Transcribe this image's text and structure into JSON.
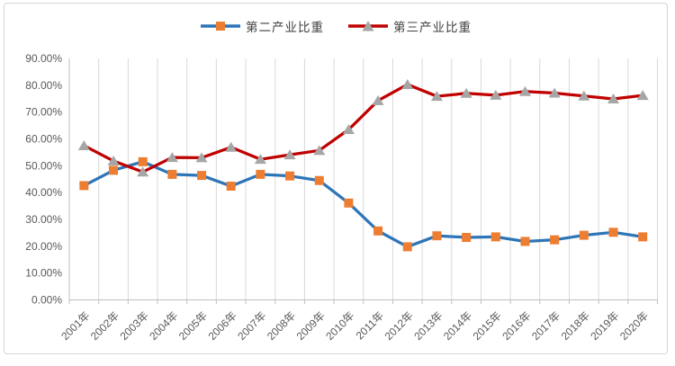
{
  "colors": {
    "secondary_line": "#2e75b6",
    "secondary_marker": "#ed7d31",
    "tertiary_line": "#c00000",
    "tertiary_marker": "#a6a6a6",
    "gridline": "#d9d9d9",
    "axis": "#bfbfbf",
    "tick_text": "#595959",
    "frame_border": "#d6d6d6"
  },
  "legend": [
    {
      "label": "第二产业比重",
      "line_color": "#2e75b6",
      "marker": "square",
      "marker_color": "#ed7d31"
    },
    {
      "label": "第三产业比重",
      "line_color": "#c00000",
      "marker": "triangle",
      "marker_color": "#a6a6a6"
    }
  ],
  "chart_data": {
    "type": "line",
    "title": "",
    "xlabel": "",
    "ylabel": "",
    "categories": [
      "2001年",
      "2002年",
      "2003年",
      "2004年",
      "2005年",
      "2006年",
      "2007年",
      "2008年",
      "2009年",
      "2010年",
      "2011年",
      "2012年",
      "2013年",
      "2014年",
      "2015年",
      "2016年",
      "2017年",
      "2018年",
      "2019年",
      "2020年"
    ],
    "series": [
      {
        "name": "第二产业比重",
        "color": "#2e75b6",
        "marker": "square",
        "marker_color": "#ed7d31",
        "values": [
          42.6,
          48.3,
          51.5,
          46.8,
          46.4,
          42.4,
          46.8,
          46.2,
          44.5,
          36.1,
          25.7,
          19.8,
          23.9,
          23.3,
          23.5,
          21.8,
          22.4,
          24.1,
          25.2,
          23.5
        ]
      },
      {
        "name": "第三产业比重",
        "color": "#c00000",
        "marker": "triangle",
        "marker_color": "#a6a6a6",
        "values": [
          57.5,
          51.8,
          47.7,
          53.1,
          53.0,
          56.9,
          52.4,
          54.1,
          55.7,
          63.5,
          74.3,
          80.3,
          75.9,
          77.0,
          76.3,
          77.7,
          77.1,
          76.0,
          74.9,
          76.2
        ]
      }
    ],
    "y_ticks": [
      "90.00%",
      "80.00%",
      "70.00%",
      "60.00%",
      "50.00%",
      "40.00%",
      "30.00%",
      "20.00%",
      "10.00%",
      "0.00%"
    ],
    "ylim": [
      0,
      90
    ],
    "grid": "vertical-only",
    "legend_position": "top",
    "x_tick_rotation": -45
  }
}
